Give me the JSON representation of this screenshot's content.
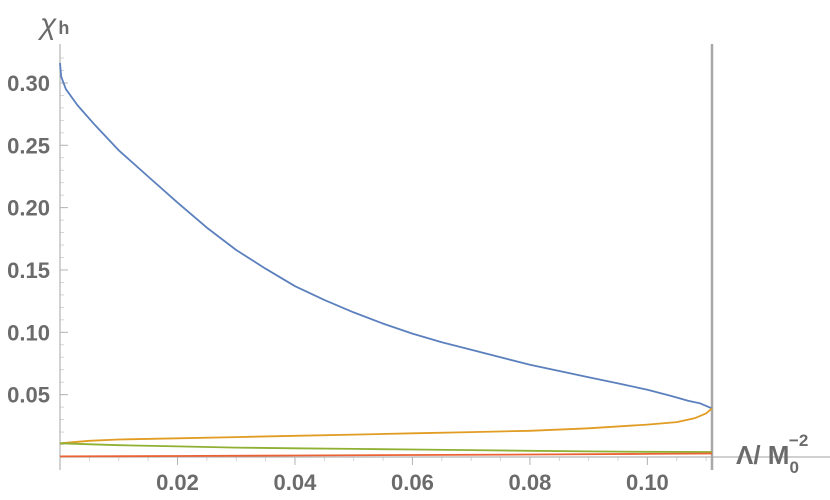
{
  "chart_data": {
    "type": "line",
    "ylabel": "χ",
    "ylabel_sub": "h",
    "xlabel": "Λ/ M",
    "xlabel_sub": "0",
    "xlabel_sup": "−2",
    "xlim": [
      0,
      0.112
    ],
    "ylim": [
      0,
      0.33
    ],
    "xticks": [
      0.02,
      0.04,
      0.06,
      0.08,
      0.1
    ],
    "xtick_labels": [
      "0.02",
      "0.04",
      "0.06",
      "0.08",
      "0.10"
    ],
    "yticks": [
      0.05,
      0.1,
      0.15,
      0.2,
      0.25,
      0.3
    ],
    "ytick_labels": [
      "0.05",
      "0.10",
      "0.15",
      "0.20",
      "0.25",
      "0.30"
    ],
    "vertical_line_x": 0.111,
    "grid": false,
    "colors": {
      "axis": "#b3b3b3",
      "tick_text": "#6b6b6b",
      "vline": "#a8a8a8"
    },
    "series": [
      {
        "color": "#5b80bd",
        "x": [
          0,
          0.0002,
          0.001,
          0.003,
          0.006,
          0.01,
          0.015,
          0.02,
          0.025,
          0.03,
          0.035,
          0.04,
          0.045,
          0.05,
          0.055,
          0.06,
          0.065,
          0.07,
          0.075,
          0.08,
          0.085,
          0.09,
          0.095,
          0.1,
          0.104,
          0.107,
          0.109,
          0.11,
          0.111
        ],
        "y": [
          0.316,
          0.305,
          0.295,
          0.282,
          0.266,
          0.246,
          0.225,
          0.204,
          0.184,
          0.166,
          0.151,
          0.137,
          0.126,
          0.116,
          0.107,
          0.099,
          0.092,
          0.086,
          0.08,
          0.074,
          0.069,
          0.064,
          0.059,
          0.054,
          0.049,
          0.045,
          0.043,
          0.041,
          0.039
        ]
      },
      {
        "color": "#e19c24",
        "x": [
          0,
          0.005,
          0.01,
          0.02,
          0.03,
          0.04,
          0.05,
          0.06,
          0.07,
          0.08,
          0.09,
          0.1,
          0.105,
          0.108,
          0.11,
          0.111
        ],
        "y": [
          0.011,
          0.013,
          0.014,
          0.015,
          0.016,
          0.017,
          0.018,
          0.019,
          0.02,
          0.021,
          0.023,
          0.026,
          0.028,
          0.031,
          0.035,
          0.039
        ]
      },
      {
        "color": "#8fb032",
        "x": [
          0,
          0.01,
          0.02,
          0.03,
          0.04,
          0.05,
          0.06,
          0.07,
          0.08,
          0.09,
          0.1,
          0.111
        ],
        "y": [
          0.011,
          0.0095,
          0.0085,
          0.0075,
          0.007,
          0.0065,
          0.006,
          0.0055,
          0.005,
          0.0045,
          0.0042,
          0.004
        ]
      },
      {
        "color": "#eb6235",
        "x": [
          0,
          0.02,
          0.04,
          0.06,
          0.08,
          0.1,
          0.111
        ],
        "y": [
          0.0005,
          0.0008,
          0.0012,
          0.0016,
          0.002,
          0.0025,
          0.0028
        ]
      }
    ]
  }
}
